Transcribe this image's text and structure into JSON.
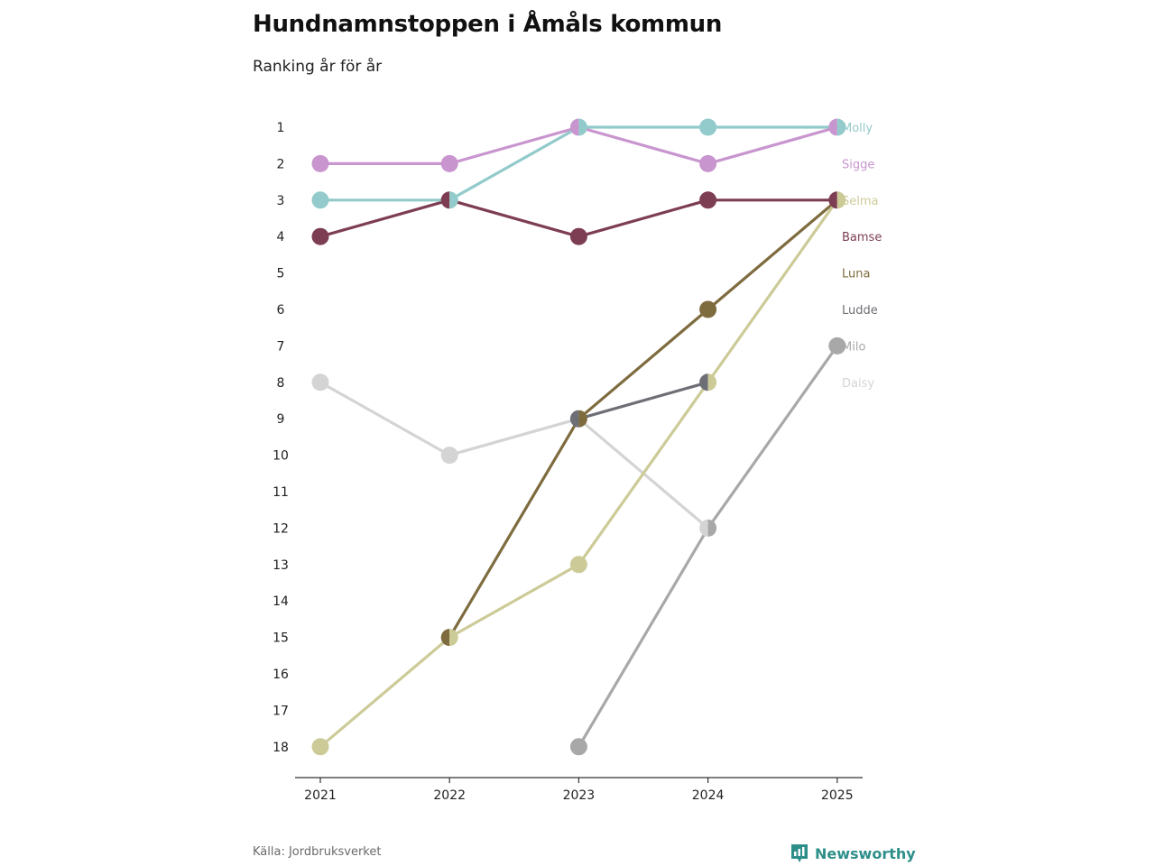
{
  "title": "Hundnamnstoppen i Åmåls kommun",
  "subtitle": "Ranking år för år",
  "source": "Källa: Jordbruksverket",
  "brand": "Newsworthy",
  "colors": {
    "brand": "#2e8f8a"
  },
  "chart_data": {
    "type": "line",
    "x": [
      2021,
      2022,
      2023,
      2024,
      2025
    ],
    "x_tick_labels": [
      "2021",
      "2022",
      "2023",
      "2024",
      "2025"
    ],
    "y_ticks": [
      1,
      2,
      3,
      4,
      5,
      6,
      7,
      8,
      9,
      10,
      11,
      12,
      13,
      14,
      15,
      16,
      17,
      18
    ],
    "y_tick_labels": [
      "1",
      "2",
      "3",
      "4",
      "5",
      "6",
      "7",
      "8",
      "9",
      "10",
      "11",
      "12",
      "13",
      "14",
      "15",
      "16",
      "17",
      "18"
    ],
    "ylim": [
      1,
      18
    ],
    "y_inverted": true,
    "series": [
      {
        "name": "Daisy",
        "color": "#d4d4d4",
        "values": [
          8,
          10,
          9,
          12,
          null
        ]
      },
      {
        "name": "Milo",
        "color": "#a8a8a8",
        "values": [
          null,
          null,
          18,
          12,
          7
        ]
      },
      {
        "name": "Ludde",
        "color": "#6e6e76",
        "values": [
          null,
          null,
          9,
          8,
          null
        ]
      },
      {
        "name": "Luna",
        "color": "#7e6c3f",
        "values": [
          null,
          15,
          9,
          6,
          3
        ]
      },
      {
        "name": "Bamse",
        "color": "#7d3d52",
        "values": [
          4,
          3,
          4,
          3,
          3
        ]
      },
      {
        "name": "Selma",
        "color": "#cccb98",
        "values": [
          18,
          15,
          13,
          8,
          3
        ]
      },
      {
        "name": "Sigge",
        "color": "#c895cf",
        "values": [
          2,
          2,
          1,
          2,
          1
        ]
      },
      {
        "name": "Molly",
        "color": "#93cacb",
        "values": [
          3,
          3,
          1,
          1,
          1
        ]
      }
    ],
    "legend_order": [
      "Molly",
      "Sigge",
      "Selma",
      "Bamse",
      "Luna",
      "Ludde",
      "Milo",
      "Daisy"
    ],
    "legend_position": "right"
  }
}
